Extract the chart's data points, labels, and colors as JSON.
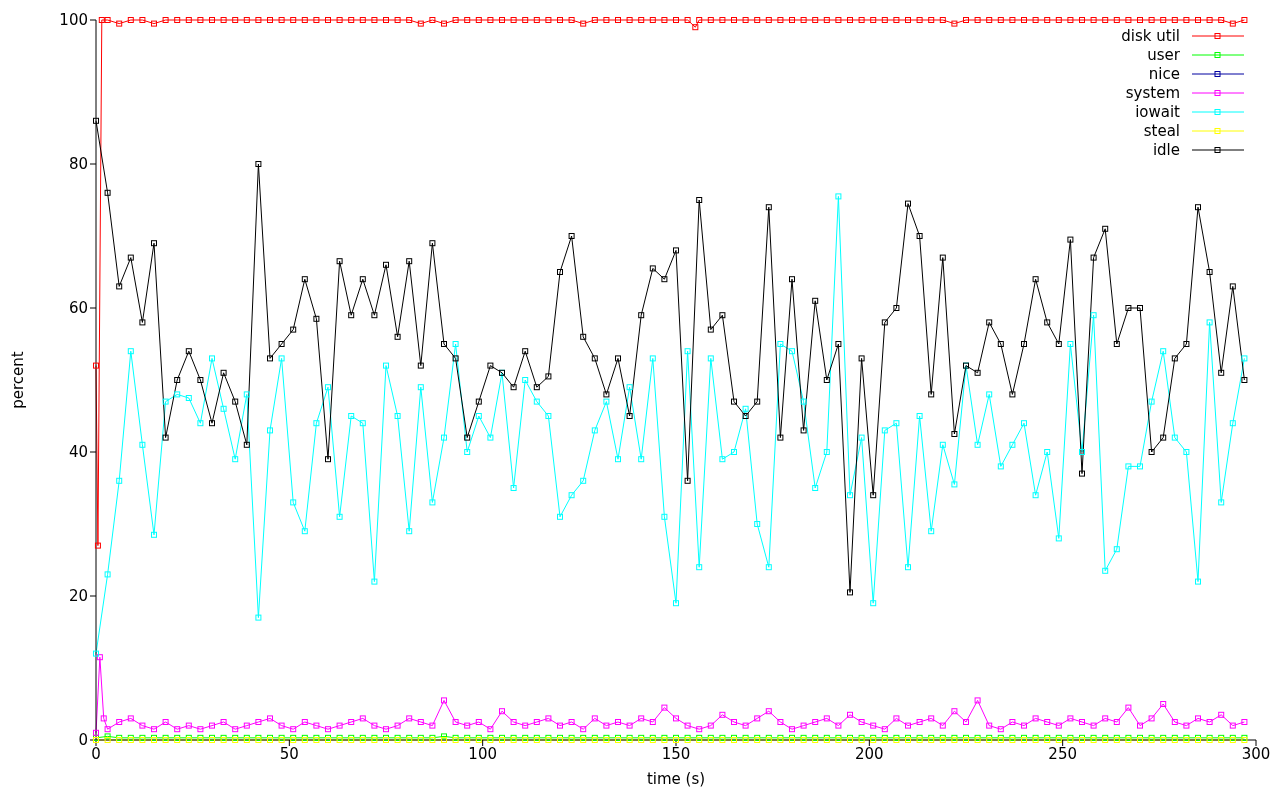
{
  "chart_data": {
    "type": "line",
    "xlabel": "time (s)",
    "ylabel": "percent",
    "xlim": [
      0,
      300
    ],
    "xticks": [
      0,
      50,
      100,
      150,
      200,
      250,
      300
    ],
    "ylim": [
      0,
      100
    ],
    "yticks": [
      0,
      20,
      40,
      60,
      80,
      100
    ],
    "grid": false,
    "legend": "top right",
    "marker": "square",
    "line_style": "solid",
    "x": [
      0,
      3,
      6,
      9,
      12,
      15,
      18,
      21,
      24,
      27,
      30,
      33,
      36,
      39,
      42,
      45,
      48,
      51,
      54,
      57,
      60,
      63,
      66,
      69,
      72,
      75,
      78,
      81,
      84,
      87,
      90,
      93,
      96,
      99,
      102,
      105,
      108,
      111,
      114,
      117,
      120,
      123,
      126,
      129,
      132,
      135,
      138,
      141,
      144,
      147,
      150,
      153,
      156,
      159,
      162,
      165,
      168,
      171,
      174,
      177,
      180,
      183,
      186,
      189,
      192,
      195,
      198,
      201,
      204,
      207,
      210,
      213,
      216,
      219,
      222,
      225,
      228,
      231,
      234,
      237,
      240,
      243,
      246,
      249,
      252,
      255,
      258,
      261,
      264,
      267,
      270,
      273,
      276,
      279,
      282,
      285,
      288,
      291,
      294,
      297
    ],
    "series": [
      {
        "name": "disk util",
        "color": "#ff0000",
        "x": [
          0,
          0.5,
          1.5,
          3,
          6,
          9,
          12,
          15,
          18,
          21,
          24,
          27,
          30,
          33,
          36,
          39,
          42,
          45,
          48,
          51,
          54,
          57,
          60,
          63,
          66,
          69,
          72,
          75,
          78,
          81,
          84,
          87,
          90,
          93,
          96,
          99,
          102,
          105,
          108,
          111,
          114,
          117,
          120,
          123,
          126,
          129,
          132,
          135,
          138,
          141,
          144,
          147,
          150,
          153,
          155,
          156,
          159,
          162,
          165,
          168,
          171,
          174,
          177,
          180,
          183,
          186,
          189,
          192,
          195,
          198,
          201,
          204,
          207,
          210,
          213,
          216,
          219,
          222,
          225,
          228,
          231,
          234,
          237,
          240,
          243,
          246,
          249,
          252,
          255,
          258,
          261,
          264,
          267,
          270,
          273,
          276,
          279,
          282,
          285,
          288,
          291,
          294,
          297
        ],
        "values": [
          52,
          27,
          100,
          100,
          99.5,
          100,
          100,
          99.5,
          100,
          100,
          100,
          100,
          100,
          100,
          100,
          100,
          100,
          100,
          100,
          100,
          100,
          100,
          100,
          100,
          100,
          100,
          100,
          100,
          100,
          100,
          99.5,
          100,
          99.5,
          100,
          100,
          100,
          100,
          100,
          100,
          100,
          100,
          100,
          100,
          100,
          99.5,
          100,
          100,
          100,
          100,
          100,
          100,
          100,
          100,
          100,
          99,
          100,
          100,
          100,
          100,
          100,
          100,
          100,
          100,
          100,
          100,
          100,
          100,
          100,
          100,
          100,
          100,
          100,
          100,
          100,
          100,
          100,
          100,
          99.5,
          100,
          100,
          100,
          100,
          100,
          100,
          100,
          100,
          100,
          100,
          100,
          100,
          100,
          100,
          100,
          100,
          100,
          100,
          100,
          100,
          100,
          100,
          100,
          99.5,
          100
        ]
      },
      {
        "name": "user",
        "color": "#00ff00",
        "values": [
          0.3,
          0.5,
          0.3,
          0.3,
          0.3,
          0.3,
          0.3,
          0.3,
          0.3,
          0.3,
          0.3,
          0.3,
          0.3,
          0.3,
          0.3,
          0.3,
          0.3,
          0.3,
          0.3,
          0.3,
          0.3,
          0.3,
          0.3,
          0.3,
          0.3,
          0.3,
          0.3,
          0.3,
          0.3,
          0.3,
          0.5,
          0.3,
          0.3,
          0.3,
          0.3,
          0.3,
          0.3,
          0.3,
          0.3,
          0.3,
          0.3,
          0.3,
          0.3,
          0.3,
          0.3,
          0.3,
          0.3,
          0.3,
          0.3,
          0.3,
          0.3,
          0.3,
          0.3,
          0.3,
          0.3,
          0.3,
          0.3,
          0.3,
          0.3,
          0.3,
          0.3,
          0.3,
          0.3,
          0.3,
          0.3,
          0.3,
          0.3,
          0.3,
          0.3,
          0.3,
          0.3,
          0.3,
          0.3,
          0.3,
          0.3,
          0.3,
          0.3,
          0.3,
          0.3,
          0.3,
          0.3,
          0.3,
          0.3,
          0.3,
          0.3,
          0.3,
          0.3,
          0.3,
          0.3,
          0.3,
          0.3,
          0.3,
          0.3,
          0.3,
          0.3,
          0.3,
          0.3,
          0.3,
          0.3,
          0.3
        ]
      },
      {
        "name": "nice",
        "color": "#0000a0",
        "values": [
          null,
          null,
          null,
          null,
          null,
          null,
          null,
          null,
          null,
          null,
          null,
          null,
          null,
          null,
          null,
          null,
          null,
          null,
          null,
          null,
          null,
          null,
          null,
          null,
          null,
          null,
          null,
          null,
          null,
          null,
          null,
          null,
          null,
          null,
          null,
          null,
          null,
          null,
          null,
          null,
          null,
          null,
          null,
          null,
          null,
          null,
          null,
          null,
          null,
          null,
          null,
          null,
          null,
          null,
          null,
          null,
          null,
          null,
          null,
          null,
          null,
          null,
          null,
          null,
          null,
          null,
          null,
          null,
          null,
          null,
          null,
          null,
          null,
          null,
          null,
          null,
          null,
          null,
          null,
          null,
          null,
          null,
          null,
          null,
          null,
          null,
          null,
          null,
          null,
          null,
          null,
          null,
          null,
          null,
          null,
          null,
          null,
          null,
          null,
          null
        ]
      },
      {
        "name": "system",
        "color": "#ff00ff",
        "x": [
          0,
          1,
          2,
          3,
          6,
          9,
          12,
          15,
          18,
          21,
          24,
          27,
          30,
          33,
          36,
          39,
          42,
          45,
          48,
          51,
          54,
          57,
          60,
          63,
          66,
          69,
          72,
          75,
          78,
          81,
          84,
          87,
          90,
          93,
          96,
          99,
          102,
          105,
          108,
          111,
          114,
          117,
          120,
          123,
          126,
          129,
          132,
          135,
          138,
          141,
          144,
          147,
          150,
          153,
          156,
          159,
          162,
          165,
          168,
          171,
          174,
          177,
          180,
          183,
          186,
          189,
          192,
          195,
          198,
          201,
          204,
          207,
          210,
          213,
          216,
          219,
          222,
          225,
          228,
          231,
          234,
          237,
          240,
          243,
          246,
          249,
          252,
          255,
          258,
          261,
          264,
          267,
          270,
          273,
          276,
          279,
          282,
          285,
          288,
          291,
          294,
          297
        ],
        "values": [
          1,
          11.5,
          3,
          1.5,
          2.5,
          3,
          2,
          1.5,
          2.5,
          1.5,
          2,
          1.5,
          2,
          2.5,
          1.5,
          2,
          2.5,
          3,
          2,
          1.5,
          2.5,
          2,
          1.5,
          2,
          2.5,
          3,
          2,
          1.5,
          2,
          3,
          2.5,
          2,
          5.5,
          2.5,
          2,
          2.5,
          1.5,
          4,
          2.5,
          2,
          2.5,
          3,
          2,
          2.5,
          1.5,
          3,
          2,
          2.5,
          2,
          3,
          2.5,
          4.5,
          3,
          2,
          1.5,
          2,
          3.5,
          2.5,
          2,
          3,
          4,
          2.5,
          1.5,
          2,
          2.5,
          3,
          2,
          3.5,
          2.5,
          2,
          1.5,
          3,
          2,
          2.5,
          3,
          2,
          4,
          2.5,
          5.5,
          2,
          1.5,
          2.5,
          2,
          3,
          2.5,
          2,
          3,
          2.5,
          2,
          3,
          2.5,
          4.5,
          2,
          3,
          5,
          2.5,
          2,
          3,
          2.5,
          3.5,
          2,
          2.5
        ]
      },
      {
        "name": "iowait",
        "color": "#00ffff",
        "values": [
          12,
          23,
          36,
          54,
          41,
          28.5,
          47,
          48,
          47.5,
          44,
          53,
          46,
          39,
          48,
          17,
          43,
          53,
          33,
          29,
          44,
          49,
          31,
          45,
          44,
          22,
          52,
          45,
          29,
          49,
          33,
          42,
          55,
          40,
          45,
          42,
          51,
          35,
          50,
          47,
          45,
          31,
          34,
          36,
          43,
          47,
          39,
          49,
          39,
          53,
          31,
          19,
          54,
          24,
          53,
          39,
          40,
          46,
          30,
          24,
          55,
          54,
          47,
          35,
          40,
          75.5,
          34,
          42,
          19,
          43,
          44,
          24,
          45,
          29,
          41,
          35.5,
          52,
          41,
          48,
          38,
          41,
          44,
          34,
          40,
          28,
          55,
          40,
          59,
          23.5,
          26.5,
          38,
          38,
          47,
          54,
          42,
          40,
          22,
          58,
          33,
          44,
          53
        ]
      },
      {
        "name": "steal",
        "color": "#ffff00",
        "values": [
          0,
          0,
          0,
          0,
          0,
          0,
          0,
          0,
          0,
          0,
          0,
          0,
          0,
          0,
          0,
          0,
          0,
          0,
          0,
          0,
          0,
          0,
          0,
          0,
          0,
          0,
          0,
          0,
          0,
          0,
          0,
          0,
          0,
          0,
          0,
          0,
          0,
          0,
          0,
          0,
          0,
          0,
          0,
          0,
          0,
          0,
          0,
          0,
          0,
          0,
          0,
          0,
          0,
          0,
          0,
          0,
          0,
          0,
          0,
          0,
          0,
          0,
          0,
          0,
          0,
          0,
          0,
          0,
          0,
          0,
          0,
          0,
          0,
          0,
          0,
          0,
          0,
          0,
          0,
          0,
          0,
          0,
          0,
          0,
          0,
          0,
          0,
          0,
          0,
          0,
          0,
          0,
          0,
          0,
          0,
          0,
          0,
          0,
          0,
          0
        ]
      },
      {
        "name": "idle",
        "color": "#000000",
        "values": [
          86,
          76,
          63,
          67,
          58,
          69,
          42,
          50,
          54,
          50,
          44,
          51,
          47,
          41,
          80,
          53,
          55,
          57,
          64,
          58.5,
          39,
          66.5,
          59,
          64,
          59,
          66,
          56,
          66.5,
          52,
          69,
          55,
          53,
          42,
          47,
          52,
          51,
          49,
          54,
          49,
          50.5,
          65,
          70,
          56,
          53,
          48,
          53,
          45,
          59,
          65.5,
          64,
          68,
          36,
          75,
          57,
          59,
          47,
          45,
          47,
          74,
          42,
          64,
          43,
          61,
          50,
          55,
          20.5,
          53,
          34,
          58,
          60,
          74.5,
          70,
          48,
          67,
          42.5,
          52,
          51,
          58,
          55,
          48,
          55,
          64,
          58,
          55,
          69.5,
          37,
          67,
          71,
          55,
          60,
          60,
          40,
          42,
          53,
          55,
          74,
          65,
          51,
          63,
          50
        ]
      }
    ]
  }
}
